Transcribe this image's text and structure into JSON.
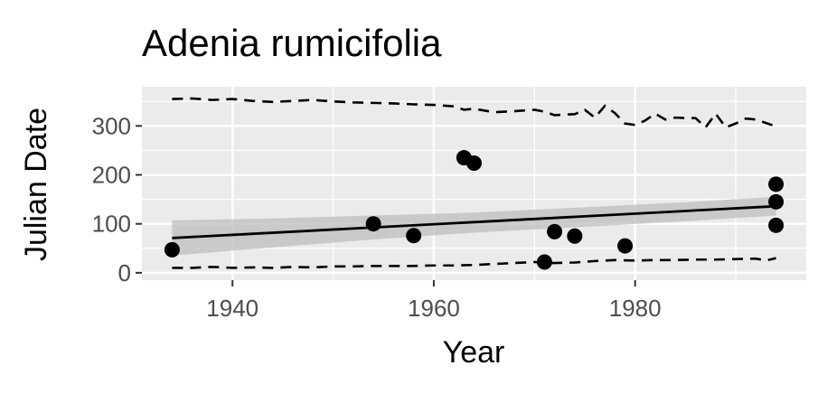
{
  "chart_data": {
    "type": "scatter",
    "title": "Adenia rumicifolia",
    "xlabel": "Year",
    "ylabel": "Julian Date",
    "xlim": [
      1931,
      1997
    ],
    "ylim": [
      -15,
      380
    ],
    "x_ticks": [
      1940,
      1960,
      1980
    ],
    "y_ticks": [
      0,
      100,
      200,
      300
    ],
    "grid": true,
    "legend": "none",
    "colors": {
      "panel": "#ebebeb",
      "grid": "#ffffff",
      "points": "#000000",
      "ribbon": "#bdbdbd"
    },
    "points": [
      {
        "x": 1934,
        "y": 47
      },
      {
        "x": 1954,
        "y": 100
      },
      {
        "x": 1958,
        "y": 76
      },
      {
        "x": 1963,
        "y": 235
      },
      {
        "x": 1964,
        "y": 224
      },
      {
        "x": 1971,
        "y": 22
      },
      {
        "x": 1972,
        "y": 84
      },
      {
        "x": 1974,
        "y": 75
      },
      {
        "x": 1979,
        "y": 55
      },
      {
        "x": 1994,
        "y": 181
      },
      {
        "x": 1994,
        "y": 145
      },
      {
        "x": 1994,
        "y": 97
      }
    ],
    "trend_line": {
      "x": [
        1934,
        1994
      ],
      "y": [
        71,
        136
      ]
    },
    "confidence_band": {
      "x": [
        1934,
        1944,
        1954,
        1964,
        1974,
        1984,
        1994
      ],
      "upper": [
        107,
        111,
        117,
        123,
        133,
        143,
        155
      ],
      "lower": [
        35,
        52,
        68,
        82,
        93,
        104,
        117
      ]
    },
    "upper_bound": {
      "x": [
        1934,
        1936,
        1938,
        1940,
        1942,
        1944,
        1946,
        1948,
        1950,
        1952,
        1954,
        1956,
        1958,
        1960,
        1962,
        1963,
        1964,
        1966,
        1968,
        1970,
        1971,
        1972,
        1973,
        1974,
        1975,
        1976,
        1977,
        1978,
        1979,
        1980,
        1981,
        1982,
        1983,
        1984,
        1985,
        1986,
        1987,
        1988,
        1989,
        1990,
        1991,
        1992,
        1993,
        1994
      ],
      "y": [
        355,
        356,
        353,
        355,
        351,
        349,
        351,
        353,
        350,
        348,
        347,
        346,
        344,
        343,
        340,
        333,
        335,
        328,
        330,
        333,
        329,
        322,
        323,
        324,
        333,
        317,
        341,
        326,
        305,
        302,
        311,
        325,
        313,
        317,
        316,
        316,
        297,
        325,
        297,
        305,
        315,
        313,
        306,
        299
      ],
      "dashed": true
    },
    "lower_bound": {
      "x": [
        1934,
        1936,
        1938,
        1940,
        1942,
        1944,
        1946,
        1948,
        1950,
        1952,
        1954,
        1956,
        1958,
        1960,
        1962,
        1964,
        1966,
        1968,
        1970,
        1971,
        1972,
        1974,
        1976,
        1978,
        1980,
        1982,
        1984,
        1986,
        1988,
        1990,
        1992,
        1993,
        1994
      ],
      "y": [
        10,
        10,
        12,
        10,
        11,
        10,
        12,
        11,
        13,
        13,
        14,
        14,
        14,
        15,
        15,
        16,
        18,
        20,
        22,
        20,
        20,
        21,
        24,
        26,
        25,
        26,
        26,
        27,
        27,
        28,
        29,
        25,
        30
      ],
      "dashed": true
    }
  }
}
